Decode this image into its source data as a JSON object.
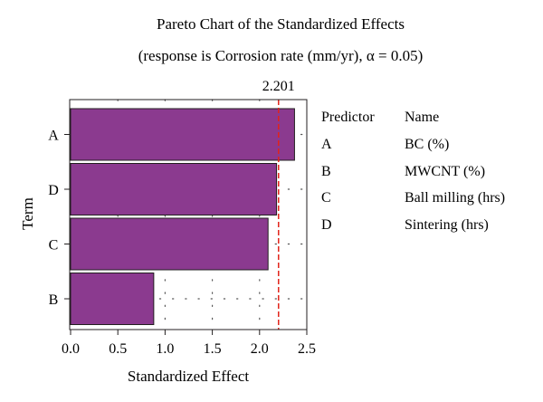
{
  "chart_data": {
    "type": "bar",
    "orientation": "horizontal",
    "title": "Pareto Chart of the Standardized Effects",
    "subtitle": "(response is Corrosion rate (mm/yr), α = 0.05)",
    "xlabel": "Standardized Effect",
    "ylabel": "Term",
    "categories": [
      "A",
      "D",
      "C",
      "B"
    ],
    "values": [
      2.37,
      2.18,
      2.09,
      0.88
    ],
    "xlim": [
      0,
      2.55
    ],
    "xticks": [
      "0.0",
      "0.5",
      "1.0",
      "1.5",
      "2.0",
      "2.5"
    ],
    "reference_line": {
      "value": 2.201,
      "label": "2.201",
      "color": "#e2231a"
    },
    "bar_color": "#8b3a8f",
    "bar_edge_color": "#231f20",
    "grid": "dotted",
    "legend": {
      "placement": "right",
      "header": [
        "Predictor",
        "Name"
      ],
      "rows": [
        [
          "A",
          "BC (%)"
        ],
        [
          "B",
          "MWCNT (%)"
        ],
        [
          "C",
          "Ball milling (hrs)"
        ],
        [
          "D",
          "Sintering (hrs)"
        ]
      ]
    }
  }
}
